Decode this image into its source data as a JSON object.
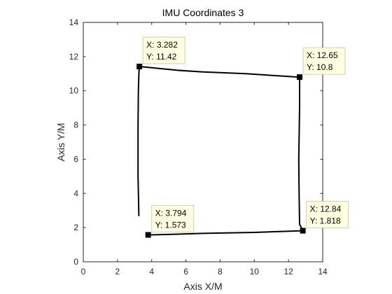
{
  "chart_data": {
    "type": "line",
    "title": "IMU Coordinates 3",
    "xlabel": "Axis X/M",
    "ylabel": "Axis Y/M",
    "xlim": [
      0,
      14
    ],
    "ylim": [
      0,
      14
    ],
    "xticks": [
      "0",
      "2",
      "4",
      "6",
      "8",
      "10",
      "12",
      "14"
    ],
    "yticks": [
      "0",
      "2",
      "4",
      "6",
      "8",
      "10",
      "12",
      "14"
    ],
    "grid": false,
    "line_color": "#000000",
    "series": [
      {
        "x": [
          3.25,
          3.2,
          3.2,
          3.22,
          3.25,
          3.282,
          5.5,
          7,
          9.5,
          12.65,
          12.65,
          12.6,
          12.62,
          12.65,
          12.84,
          10,
          7,
          5,
          3.794
        ],
        "y": [
          2.7,
          5,
          8,
          10,
          11,
          11.42,
          11.2,
          11.1,
          11.0,
          10.8,
          9,
          6,
          4,
          2.2,
          1.818,
          1.72,
          1.66,
          1.6,
          1.573
        ]
      }
    ],
    "datatips": [
      {
        "x": 3.282,
        "y": 11.42,
        "x_text": "X: 3.282",
        "y_text": "Y: 11.42"
      },
      {
        "x": 12.65,
        "y": 10.8,
        "x_text": "X: 12.65",
        "y_text": "Y: 10.8"
      },
      {
        "x": 3.794,
        "y": 1.573,
        "x_text": "X: 3.794",
        "y_text": "Y: 1.573"
      },
      {
        "x": 12.84,
        "y": 1.818,
        "x_text": "X: 12.84",
        "y_text": "Y: 1.818"
      }
    ]
  }
}
